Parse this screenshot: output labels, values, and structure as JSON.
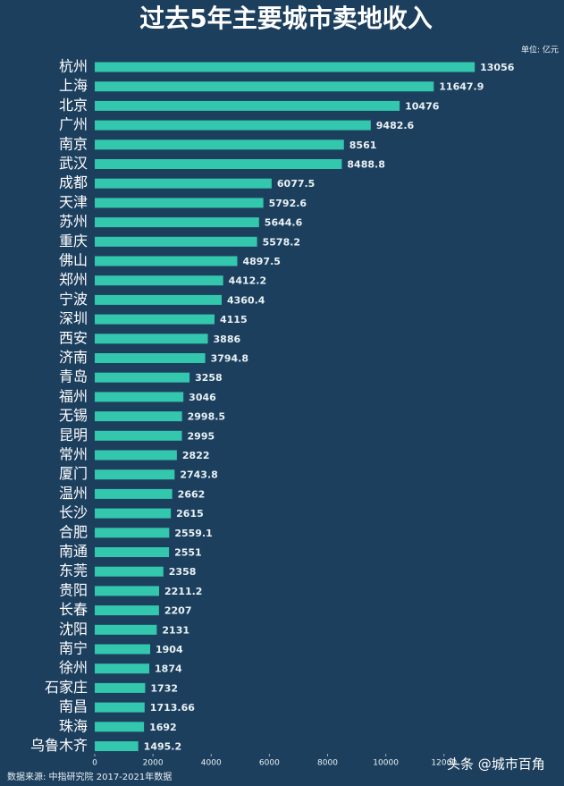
{
  "chart_data": {
    "type": "bar",
    "orientation": "horizontal",
    "title": "过去5年主要城市卖地收入",
    "unit_label": "单位: 亿元",
    "categories": [
      "杭州",
      "上海",
      "北京",
      "广州",
      "南京",
      "武汉",
      "成都",
      "天津",
      "苏州",
      "重庆",
      "佛山",
      "郑州",
      "宁波",
      "深圳",
      "西安",
      "济南",
      "青岛",
      "福州",
      "无锡",
      "昆明",
      "常州",
      "厦门",
      "温州",
      "长沙",
      "合肥",
      "南通",
      "东莞",
      "贵阳",
      "长春",
      "沈阳",
      "南宁",
      "徐州",
      "石家庄",
      "南昌",
      "珠海",
      "乌鲁木齐"
    ],
    "values": [
      13056,
      11647.9,
      10476,
      9482.6,
      8561,
      8488.8,
      6077.5,
      5792.6,
      5644.6,
      5578.2,
      4897.5,
      4412.2,
      4360.4,
      4115,
      3886,
      3794.8,
      3258,
      3046,
      2998.5,
      2995,
      2822,
      2743.8,
      2662,
      2615,
      2559.1,
      2551,
      2358,
      2211.2,
      2207,
      2131,
      1904,
      1874,
      1732,
      1713.66,
      1692,
      1495.2
    ],
    "color": "#33c7ad",
    "xlim": [
      0,
      16000
    ],
    "xticks": [
      0,
      2000,
      4000,
      6000,
      8000,
      10000,
      12000
    ],
    "source": "数据来源: 中指研究院   2017-2021年数据",
    "watermark": "头条 @城市百角"
  }
}
